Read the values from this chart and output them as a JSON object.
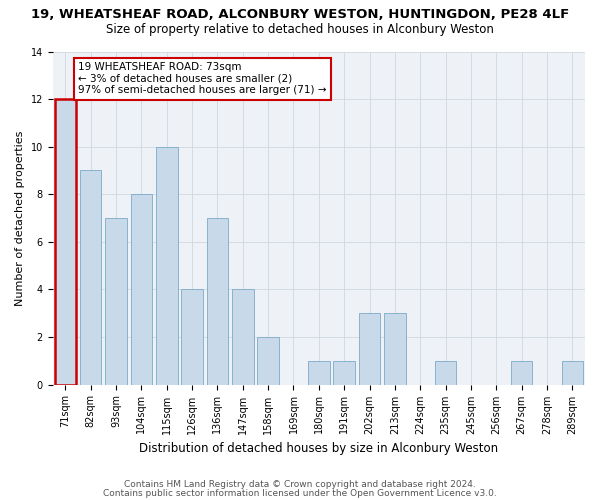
{
  "title1": "19, WHEATSHEAF ROAD, ALCONBURY WESTON, HUNTINGDON, PE28 4LF",
  "title2": "Size of property relative to detached houses in Alconbury Weston",
  "xlabel": "Distribution of detached houses by size in Alconbury Weston",
  "ylabel": "Number of detached properties",
  "categories": [
    "71sqm",
    "82sqm",
    "93sqm",
    "104sqm",
    "115sqm",
    "126sqm",
    "136sqm",
    "147sqm",
    "158sqm",
    "169sqm",
    "180sqm",
    "191sqm",
    "202sqm",
    "213sqm",
    "224sqm",
    "235sqm",
    "245sqm",
    "256sqm",
    "267sqm",
    "278sqm",
    "289sqm"
  ],
  "values": [
    12,
    9,
    7,
    8,
    10,
    4,
    7,
    4,
    2,
    0,
    1,
    1,
    3,
    3,
    0,
    1,
    0,
    0,
    1,
    0,
    1
  ],
  "bar_color": "#c8d9ea",
  "bar_edge_color": "#7aaac8",
  "highlight_bar_index": 0,
  "highlight_bar_edge_color": "#cc0000",
  "annotation_line1": "19 WHEATSHEAF ROAD: 73sqm",
  "annotation_line2": "← 3% of detached houses are smaller (2)",
  "annotation_line3": "97% of semi-detached houses are larger (71) →",
  "annotation_box_edge_color": "#cc0000",
  "ylim": [
    0,
    14
  ],
  "yticks": [
    0,
    2,
    4,
    6,
    8,
    10,
    12,
    14
  ],
  "grid_color": "#d0d8e0",
  "bg_color": "#eef2f6",
  "footer1": "Contains HM Land Registry data © Crown copyright and database right 2024.",
  "footer2": "Contains public sector information licensed under the Open Government Licence v3.0.",
  "title1_fontsize": 9.5,
  "title2_fontsize": 8.5,
  "xlabel_fontsize": 8.5,
  "ylabel_fontsize": 8,
  "tick_fontsize": 7,
  "footer_fontsize": 6.5,
  "annotation_fontsize": 7.5
}
